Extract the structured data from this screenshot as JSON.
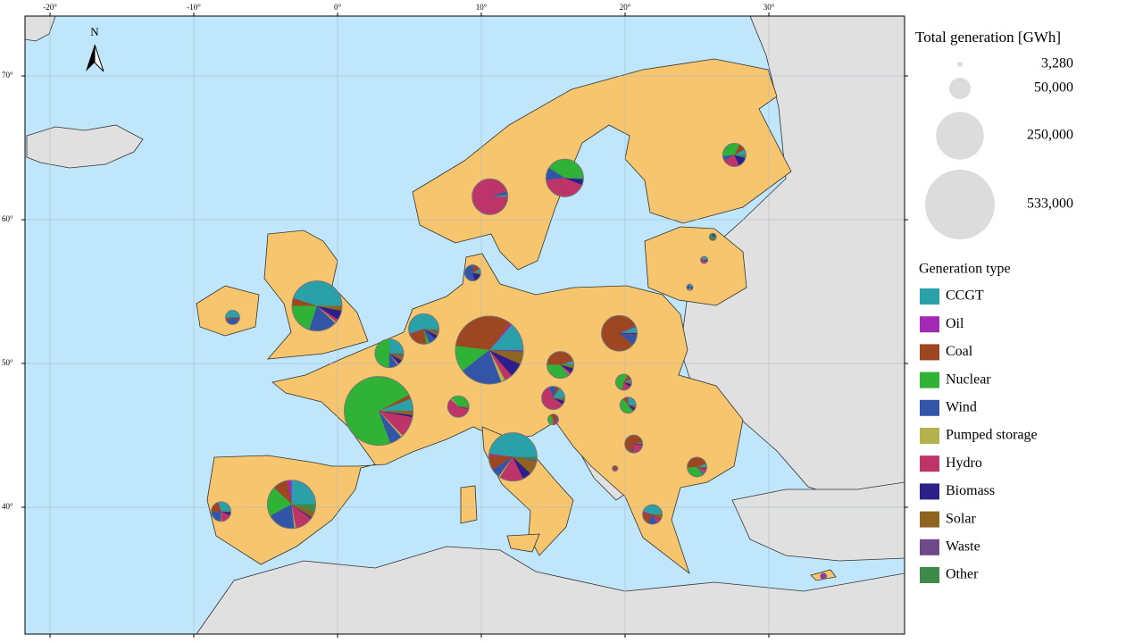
{
  "map": {
    "lon_lim": [
      -21.74,
      39.44
    ],
    "lat_lim": [
      31.18,
      74.16
    ],
    "lon_ticks": [
      {
        "value": -20,
        "label": "-20°"
      },
      {
        "value": -10,
        "label": "-10°"
      },
      {
        "value": 0,
        "label": "0°"
      },
      {
        "value": 10,
        "label": "10°"
      },
      {
        "value": 20,
        "label": "20°"
      },
      {
        "value": 30,
        "label": "30°"
      }
    ],
    "lat_ticks": [
      {
        "value": 70,
        "label": "70°"
      },
      {
        "value": 60,
        "label": "60°"
      },
      {
        "value": 50,
        "label": "50°"
      },
      {
        "value": 40,
        "label": "40°"
      }
    ],
    "north_label": "N",
    "size_legend": {
      "title": "Total generation [GWh]",
      "entries": [
        {
          "value": 3280,
          "label": "3,280"
        },
        {
          "value": 50000,
          "label": "50,000"
        },
        {
          "value": 250000,
          "label": "250,000"
        },
        {
          "value": 533000,
          "label": "533,000"
        }
      ]
    },
    "type_legend": {
      "title": "Generation type",
      "types": [
        {
          "name": "CCGT",
          "color": "#2aa0a8"
        },
        {
          "name": "Oil",
          "color": "#a22ab4"
        },
        {
          "name": "Coal",
          "color": "#9c4622"
        },
        {
          "name": "Nuclear",
          "color": "#2fb236"
        },
        {
          "name": "Wind",
          "color": "#3355a8"
        },
        {
          "name": "Pumped storage",
          "color": "#b5b24e"
        },
        {
          "name": "Hydro",
          "color": "#bc3468"
        },
        {
          "name": "Biomass",
          "color": "#2c1f8a"
        },
        {
          "name": "Solar",
          "color": "#8f6420"
        },
        {
          "name": "Waste",
          "color": "#6e4a8a"
        },
        {
          "name": "Other",
          "color": "#3f8a4a"
        }
      ]
    },
    "pies": [
      {
        "lon": 10.56,
        "lat": 50.93,
        "total": 506000,
        "shares": [
          14,
          1,
          35,
          13,
          21,
          2,
          4,
          7,
          6,
          1,
          0
        ]
      },
      {
        "lon": 2.86,
        "lat": 46.7,
        "total": 520000,
        "shares": [
          6,
          0,
          2,
          75,
          6,
          1,
          10,
          1,
          2,
          0,
          0
        ]
      },
      {
        "lon": -1.43,
        "lat": 54.0,
        "total": 275000,
        "shares": [
          45,
          0,
          5,
          20,
          18,
          1,
          2,
          6,
          3,
          0,
          0
        ]
      },
      {
        "lon": 12.2,
        "lat": 43.5,
        "total": 255000,
        "shares": [
          48,
          1,
          10,
          0,
          6,
          1,
          16,
          6,
          9,
          1,
          2
        ]
      },
      {
        "lon": -3.2,
        "lat": 40.2,
        "total": 255000,
        "shares": [
          25,
          3,
          10,
          20,
          19,
          1,
          12,
          1,
          4,
          0,
          5
        ]
      },
      {
        "lon": 19.6,
        "lat": 52.1,
        "total": 140000,
        "shares": [
          6,
          1,
          82,
          0,
          9,
          0,
          1,
          1,
          0,
          0,
          0
        ]
      },
      {
        "lon": 15.8,
        "lat": 62.9,
        "total": 155000,
        "shares": [
          1,
          0,
          0,
          40,
          11,
          0,
          42,
          5,
          0,
          0,
          1
        ]
      },
      {
        "lon": 10.6,
        "lat": 61.6,
        "total": 140000,
        "shares": [
          2,
          0,
          0,
          0,
          3,
          0,
          95,
          0,
          0,
          0,
          0
        ]
      },
      {
        "lon": 6.0,
        "lat": 52.4,
        "total": 101000,
        "shares": [
          55,
          1,
          22,
          3,
          8,
          0,
          0,
          4,
          3,
          2,
          2
        ]
      },
      {
        "lon": 3.6,
        "lat": 50.7,
        "total": 90000,
        "shares": [
          25,
          0,
          0,
          50,
          10,
          1,
          1,
          5,
          5,
          2,
          1
        ]
      },
      {
        "lon": 15.5,
        "lat": 49.9,
        "total": 79000,
        "shares": [
          5,
          0,
          45,
          35,
          1,
          1,
          3,
          6,
          3,
          0,
          1
        ]
      },
      {
        "lon": 27.6,
        "lat": 64.5,
        "total": 59000,
        "shares": [
          8,
          0,
          10,
          34,
          6,
          0,
          24,
          14,
          0,
          0,
          4
        ]
      },
      {
        "lon": 15.0,
        "lat": 47.6,
        "total": 59000,
        "shares": [
          16,
          0,
          5,
          0,
          10,
          0,
          60,
          5,
          2,
          1,
          1
        ]
      },
      {
        "lon": 8.4,
        "lat": 47.0,
        "total": 50000,
        "shares": [
          1,
          0,
          0,
          35,
          0,
          2,
          58,
          1,
          3,
          0,
          0
        ]
      },
      {
        "lon": 25.0,
        "lat": 42.8,
        "total": 42000,
        "shares": [
          6,
          0,
          45,
          35,
          3,
          1,
          7,
          1,
          2,
          0,
          0
        ]
      },
      {
        "lon": 20.6,
        "lat": 44.4,
        "total": 35000,
        "shares": [
          3,
          0,
          68,
          0,
          3,
          0,
          25,
          1,
          0,
          0,
          0
        ]
      },
      {
        "lon": -8.1,
        "lat": 39.7,
        "total": 42000,
        "shares": [
          30,
          1,
          20,
          0,
          24,
          1,
          18,
          5,
          1,
          0,
          0
        ]
      },
      {
        "lon": 21.9,
        "lat": 39.5,
        "total": 42000,
        "shares": [
          45,
          3,
          20,
          0,
          15,
          0,
          8,
          1,
          8,
          0,
          0
        ]
      },
      {
        "lon": -7.3,
        "lat": 53.2,
        "total": 22000,
        "shares": [
          52,
          1,
          8,
          0,
          32,
          0,
          3,
          2,
          0,
          1,
          1
        ]
      },
      {
        "lon": 9.4,
        "lat": 56.3,
        "total": 28000,
        "shares": [
          8,
          1,
          15,
          0,
          55,
          0,
          0,
          18,
          3,
          0,
          0
        ]
      },
      {
        "lon": 19.9,
        "lat": 48.7,
        "total": 28000,
        "shares": [
          6,
          1,
          10,
          55,
          0,
          0,
          18,
          6,
          3,
          1,
          0
        ]
      },
      {
        "lon": 20.2,
        "lat": 47.1,
        "total": 28000,
        "shares": [
          25,
          1,
          10,
          50,
          2,
          0,
          1,
          6,
          4,
          1,
          0
        ]
      },
      {
        "lon": 15.0,
        "lat": 46.1,
        "total": 12600,
        "shares": [
          4,
          0,
          30,
          40,
          0,
          0,
          25,
          1,
          0,
          0,
          0
        ]
      },
      {
        "lon": 26.1,
        "lat": 58.8,
        "total": 5600,
        "shares": [
          0,
          5,
          0,
          0,
          10,
          0,
          0,
          10,
          0,
          0,
          75
        ]
      },
      {
        "lon": 25.5,
        "lat": 57.2,
        "total": 5600,
        "shares": [
          40,
          0,
          0,
          0,
          3,
          0,
          50,
          7,
          0,
          0,
          0
        ]
      },
      {
        "lon": 24.5,
        "lat": 55.3,
        "total": 4300,
        "shares": [
          30,
          0,
          0,
          0,
          40,
          10,
          10,
          10,
          0,
          0,
          0
        ]
      },
      {
        "lon": 19.3,
        "lat": 42.7,
        "total": 3280,
        "shares": [
          0,
          0,
          50,
          0,
          10,
          0,
          40,
          0,
          0,
          0,
          0
        ]
      },
      {
        "lon": 33.8,
        "lat": 35.2,
        "total": 4300,
        "shares": [
          0,
          90,
          0,
          0,
          5,
          0,
          0,
          0,
          5,
          0,
          0
        ]
      }
    ]
  }
}
